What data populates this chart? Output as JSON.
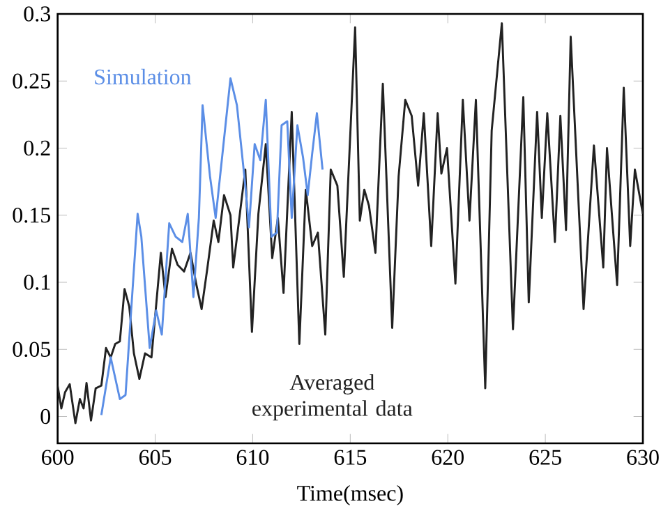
{
  "chart_data": {
    "type": "line",
    "xlabel": "Time(msec)",
    "xlim": [
      600,
      630
    ],
    "ylim": [
      -0.02,
      0.3
    ],
    "xticks": [
      600,
      605,
      610,
      615,
      620,
      625,
      630
    ],
    "yticks": [
      0,
      0.05,
      0.1,
      0.15,
      0.2,
      0.25,
      0.3
    ],
    "grid": false,
    "legend": false,
    "marker": "none",
    "line_style": "solid",
    "series": [
      {
        "name": "Averaged experimental data",
        "color": "#222222",
        "x": [
          600,
          600.19,
          600.38,
          600.62,
          600.91,
          601.14,
          601.33,
          601.48,
          601.71,
          601.95,
          602.24,
          602.48,
          602.72,
          602.95,
          603.19,
          603.43,
          603.67,
          603.91,
          604.19,
          604.48,
          604.81,
          605.29,
          605.53,
          605.86,
          606.15,
          606.48,
          606.81,
          607.1,
          607.38,
          607.67,
          608.0,
          608.24,
          608.53,
          608.86,
          609.0,
          609.34,
          609.62,
          609.96,
          610.29,
          610.67,
          611.0,
          611.29,
          611.58,
          612.0,
          612.39,
          612.72,
          613.05,
          613.34,
          613.72,
          614.0,
          614.34,
          614.67,
          615.25,
          615.49,
          615.72,
          615.96,
          616.29,
          616.67,
          617.15,
          617.48,
          617.82,
          618.15,
          618.48,
          618.77,
          619.15,
          619.48,
          619.67,
          619.96,
          620.39,
          620.77,
          621.11,
          621.44,
          621.92,
          622.25,
          622.77,
          623.34,
          623.87,
          624.15,
          624.58,
          624.82,
          625.1,
          625.49,
          625.77,
          626.06,
          626.3,
          626.96,
          627.49,
          627.97,
          628.16,
          628.68,
          629.02,
          629.35,
          629.59,
          630.0
        ],
        "values": [
          0.023,
          0.006,
          0.018,
          0.024,
          -0.005,
          0.013,
          0.006,
          0.025,
          -0.003,
          0.021,
          0.023,
          0.051,
          0.044,
          0.054,
          0.056,
          0.095,
          0.082,
          0.047,
          0.028,
          0.047,
          0.044,
          0.122,
          0.089,
          0.125,
          0.113,
          0.108,
          0.122,
          0.099,
          0.08,
          0.11,
          0.146,
          0.13,
          0.165,
          0.15,
          0.111,
          0.151,
          0.184,
          0.063,
          0.151,
          0.203,
          0.118,
          0.148,
          0.092,
          0.227,
          0.054,
          0.169,
          0.127,
          0.137,
          0.061,
          0.184,
          0.172,
          0.104,
          0.29,
          0.146,
          0.169,
          0.157,
          0.122,
          0.248,
          0.066,
          0.179,
          0.236,
          0.224,
          0.172,
          0.226,
          0.127,
          0.226,
          0.181,
          0.2,
          0.099,
          0.236,
          0.146,
          0.236,
          0.021,
          0.213,
          0.293,
          0.065,
          0.238,
          0.085,
          0.227,
          0.148,
          0.226,
          0.13,
          0.224,
          0.139,
          0.283,
          0.08,
          0.202,
          0.111,
          0.2,
          0.098,
          0.245,
          0.127,
          0.184,
          0.151
        ]
      },
      {
        "name": "Simulation",
        "color": "#5b8ee6",
        "x": [
          602.24,
          602.72,
          603.19,
          603.48,
          604.1,
          604.29,
          604.72,
          605.05,
          605.34,
          605.72,
          606.05,
          606.39,
          606.67,
          606.96,
          607.24,
          607.43,
          607.81,
          608.1,
          608.48,
          608.86,
          609.19,
          609.62,
          609.81,
          610.1,
          610.39,
          610.67,
          610.96,
          611.24,
          611.48,
          611.77,
          612.0,
          612.29,
          612.58,
          612.82,
          613.05,
          613.29,
          613.58
        ],
        "values": [
          0.001,
          0.044,
          0.013,
          0.016,
          0.151,
          0.134,
          0.051,
          0.079,
          0.061,
          0.144,
          0.134,
          0.13,
          0.151,
          0.089,
          0.148,
          0.232,
          0.179,
          0.148,
          0.2,
          0.252,
          0.232,
          0.172,
          0.141,
          0.203,
          0.191,
          0.236,
          0.134,
          0.137,
          0.217,
          0.22,
          0.148,
          0.217,
          0.193,
          0.165,
          0.196,
          0.226,
          0.184
        ]
      }
    ]
  }
}
